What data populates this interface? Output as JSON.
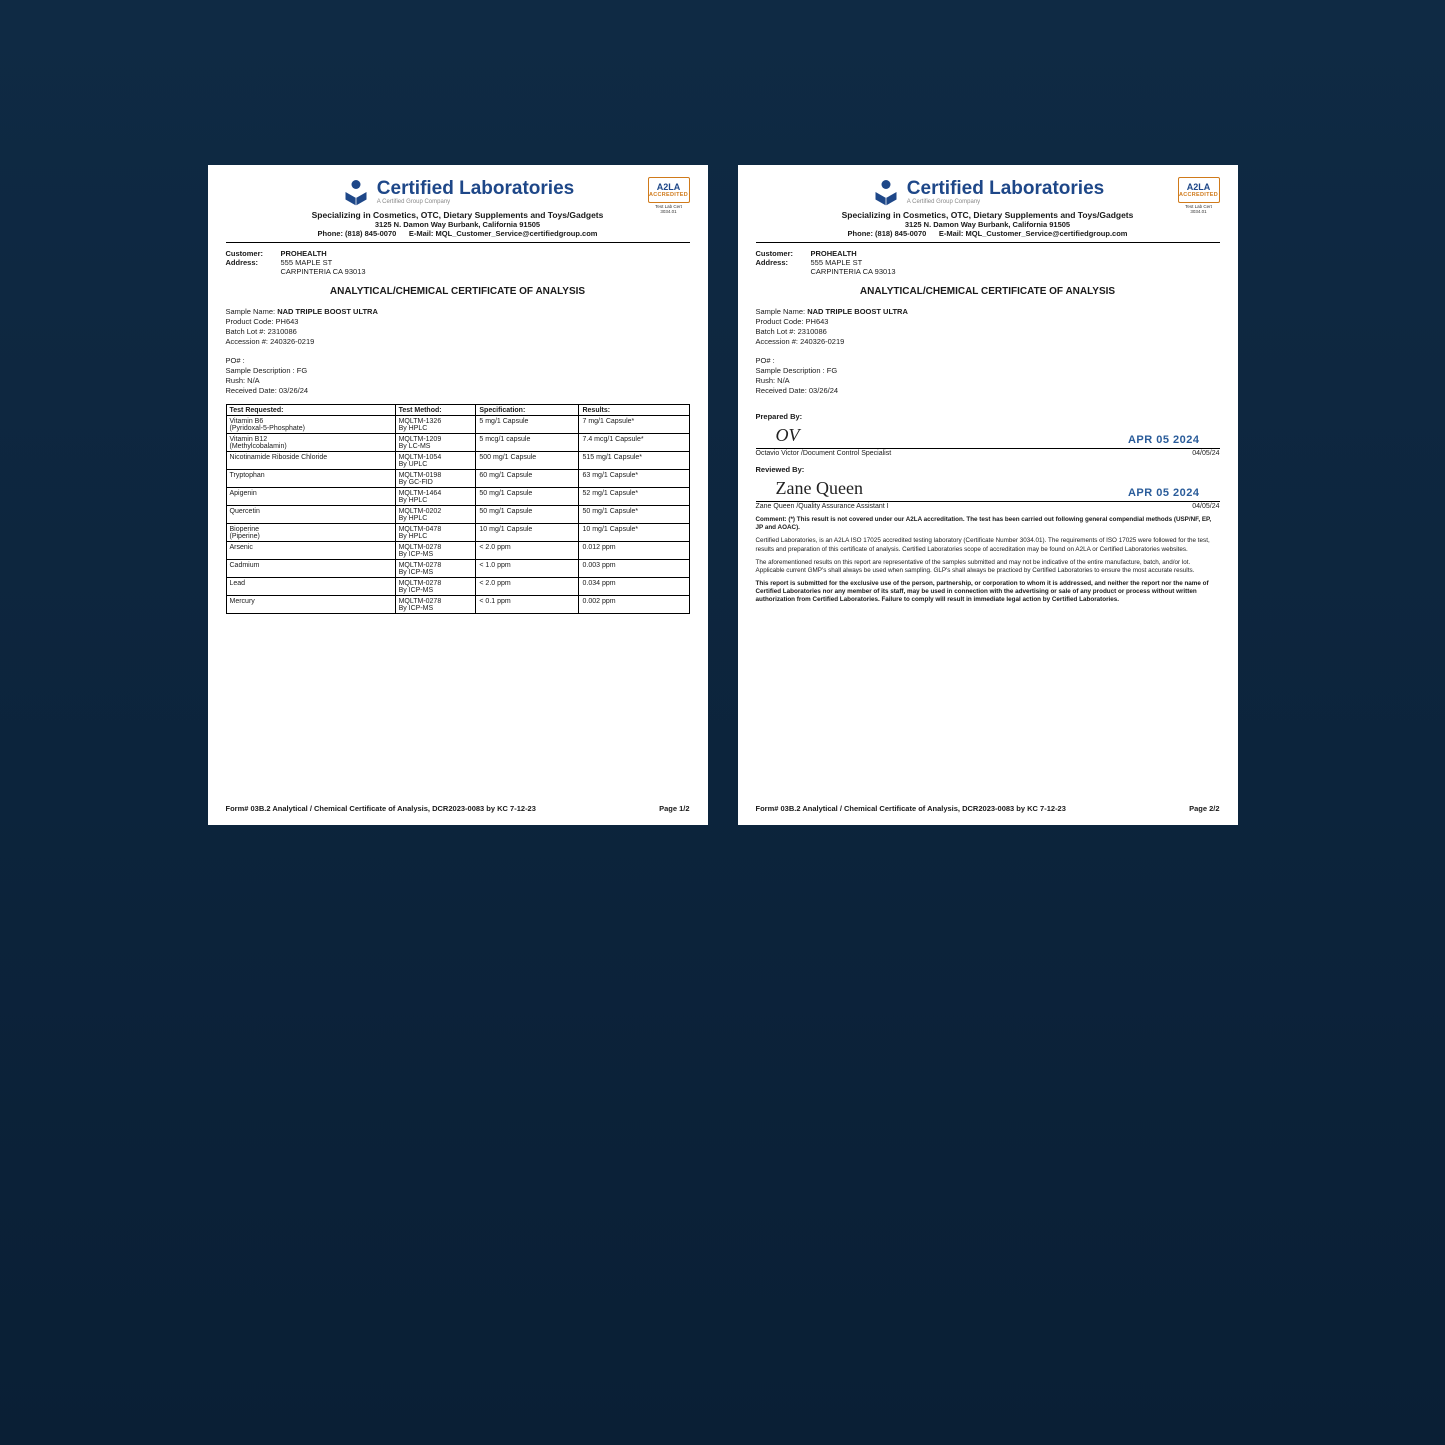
{
  "company": {
    "name": "Certified Laboratories",
    "sub": "A Certified Group Company",
    "tagline": "Specializing in Cosmetics, OTC, Dietary Supplements and Toys/Gadgets",
    "address": "3125 N. Damon Way Burbank, California 91505",
    "phone": "Phone: (818) 845-0070",
    "email": "E-Mail: MQL_Customer_Service@certifiedgroup.com",
    "logo_color": "#1e4788",
    "badge_label": "A2LA",
    "badge_accredited": "ACCREDITED",
    "badge_cert": "Test Lab Cert 3034.01"
  },
  "customer": {
    "label_customer": "Customer:",
    "label_address": "Address:",
    "name": "PROHEALTH",
    "addr1": "555 MAPLE ST",
    "addr2": "CARPINTERIA CA 93013"
  },
  "doc_title": "ANALYTICAL/CHEMICAL CERTIFICATE OF ANALYSIS",
  "sample": {
    "name_label": "Sample Name: ",
    "name": "NAD TRIPLE BOOST ULTRA",
    "product_code": "Product Code: PH643",
    "batch": "Batch Lot #: 2310086",
    "accession": "Accession #: 240326-0219",
    "po": "PO# :",
    "desc": "Sample Description : FG",
    "rush": "Rush: N/A",
    "received": "Received Date: 03/26/24"
  },
  "table": {
    "headers": [
      "Test Requested:",
      "Test Method:",
      "Specification:",
      "Results:"
    ],
    "rows": [
      [
        "Vitamin B6 (Pyridoxal-5-Phosphate)",
        "MQLTM-1326 By HPLC",
        "5 mg/1 Capsule",
        "7 mg/1 Capsule*"
      ],
      [
        "Vitamin B12 (Methylcobalamin)",
        "MQLTM-1209 By LC-MS",
        "5 mcg/1 capsule",
        "7.4 mcg/1 Capsule*"
      ],
      [
        "Nicotinamide Riboside Chloride",
        "MQLTM-1054 By UPLC",
        "500 mg/1 Capsule",
        "515 mg/1 Capsule*"
      ],
      [
        "Tryptophan",
        "MQLTM-0198 By GC-FID",
        "60 mg/1 Capsule",
        "63 mg/1 Capsule*"
      ],
      [
        "Apigenin",
        "MQLTM-1464 By HPLC",
        "50 mg/1 Capsule",
        "52 mg/1 Capsule*"
      ],
      [
        "Quercetin",
        "MQLTM-0202 By HPLC",
        "50 mg/1 Capsule",
        "50 mg/1 Capsule*"
      ],
      [
        "Bioperine (Piperine)",
        "MQLTM-0478 By HPLC",
        "10 mg/1 Capsule",
        "10 mg/1 Capsule*"
      ],
      [
        "Arsenic",
        "MQLTM-0278 By ICP-MS",
        "< 2.0 ppm",
        "0.012 ppm"
      ],
      [
        "Cadmium",
        "MQLTM-0278 By ICP-MS",
        "< 1.0 ppm",
        "0.003 ppm"
      ],
      [
        "Lead",
        "MQLTM-0278 By ICP-MS",
        "< 2.0 ppm",
        "0.034 ppm"
      ],
      [
        "Mercury",
        "MQLTM-0278 By ICP-MS",
        "< 0.1 ppm",
        "0.002 ppm"
      ]
    ]
  },
  "signatures": {
    "prepared_label": "Prepared By:",
    "prepared_sig": "OV",
    "prepared_date_stamp": "APR 05 2024",
    "prepared_name": "Octavio Victor /Document Control Specialist",
    "prepared_date": "04/05/24",
    "reviewed_label": "Reviewed By:",
    "reviewed_sig": "Zane Queen",
    "reviewed_date_stamp": "APR 05 2024",
    "reviewed_name": "Zane Queen /Quality Assurance Assistant I",
    "reviewed_date": "04/05/24"
  },
  "comments": {
    "c1": "Comment: (*) This result is not covered under our A2LA accreditation. The test has been carried out following general compendial methods (USP/NF, EP, JP and AOAC).",
    "c2": "Certified Laboratories, is an A2LA ISO 17025 accredited testing laboratory (Certificate Number 3034.01). The requirements of ISO 17025 were followed for the test, results and preparation of this certificate of analysis. Certified Laboratories scope of accreditation may be found on A2LA or Certified Laboratories websites.",
    "c3": "The aforementioned results on this report are representative of the samples submitted and may not be indicative of the entire manufacture, batch, and/or lot. Applicable current GMP's shall always be used when sampling. GLP's shall always be practiced by Certified Laboratories to ensure the most accurate results.",
    "c4": "This report is submitted for the exclusive use of the person, partnership, or corporation to whom it is addressed, and neither the report nor the name of Certified Laboratories nor any member of its staff, may be used in connection with the advertising or sale of any product or process without written authorization from Certified Laboratories. Failure to comply will result in immediate legal action by Certified Laboratories."
  },
  "footer": {
    "form": "Form# 03B.2 Analytical / Chemical Certificate of Analysis, DCR2023-0083 by KC 7-12-23",
    "page1": "Page 1/2",
    "page2": "Page 2/2"
  }
}
